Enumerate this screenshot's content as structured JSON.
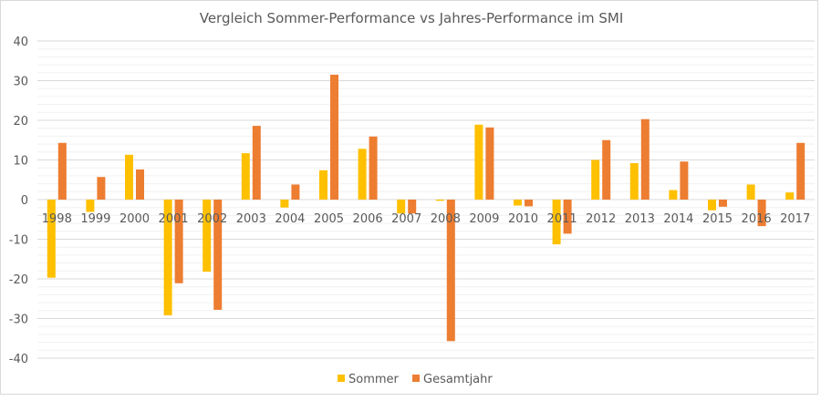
{
  "chart_data": {
    "type": "bar",
    "title": "Vergleich Sommer-Performance  vs Jahres-Performance  im SMI",
    "xlabel": "",
    "ylabel": "",
    "ylim": [
      -40,
      40
    ],
    "yticks": [
      40,
      30,
      20,
      10,
      0,
      -10,
      -20,
      -30,
      -40
    ],
    "grid": true,
    "legend_position": "bottom",
    "categories": [
      "1998",
      "1999",
      "2000",
      "2001",
      "2002",
      "2003",
      "2004",
      "2005",
      "2006",
      "2007",
      "2008",
      "2009",
      "2010",
      "2011",
      "2012",
      "2013",
      "2014",
      "2015",
      "2016",
      "2017"
    ],
    "series": [
      {
        "name": "Sommer",
        "color": "#FFC000",
        "values": [
          -19.7,
          -3.1,
          11.3,
          -29.2,
          -18.2,
          11.7,
          -2.0,
          7.4,
          12.8,
          -3.5,
          -0.3,
          18.9,
          -1.5,
          -11.3,
          10.0,
          9.2,
          2.4,
          -2.7,
          3.8,
          1.8
        ]
      },
      {
        "name": "Gesamtjahr",
        "color": "#ED7D31",
        "values": [
          14.3,
          5.7,
          7.6,
          -21.1,
          -27.8,
          18.6,
          3.8,
          31.5,
          15.9,
          -3.5,
          -35.7,
          18.2,
          -1.7,
          -8.6,
          15.0,
          20.3,
          9.6,
          -1.8,
          -6.7,
          14.3
        ]
      }
    ]
  }
}
